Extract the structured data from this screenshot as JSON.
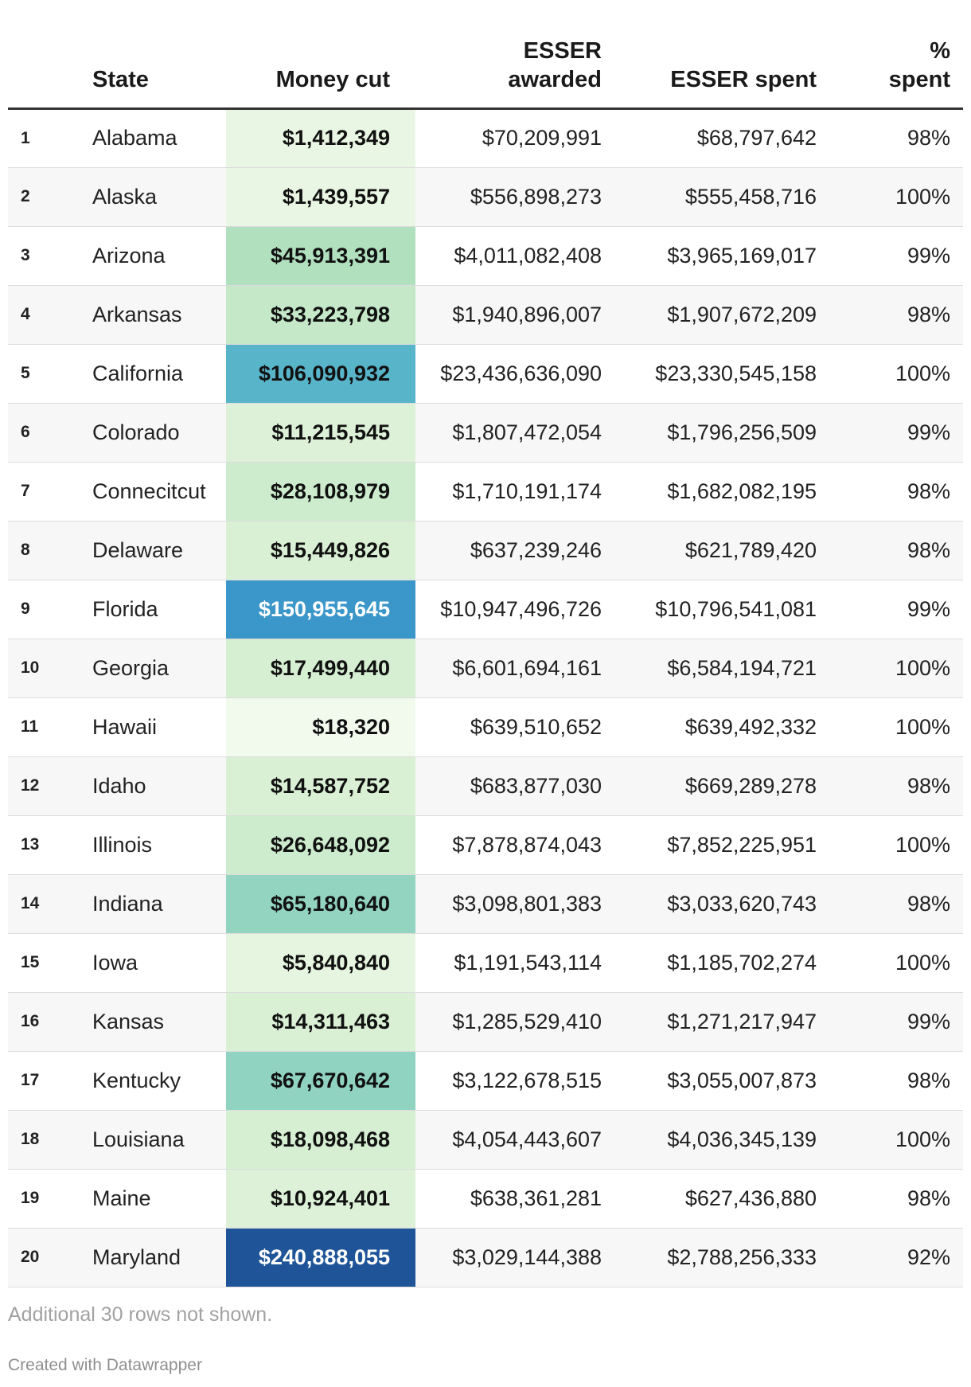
{
  "table": {
    "headers": {
      "rank": "",
      "state": "State",
      "money_cut": "Money cut",
      "esser_awarded_line1": "ESSER",
      "esser_awarded_line2": "awarded",
      "esser_spent": "ESSER spent",
      "pct_line1": "%",
      "pct_line2": "spent"
    },
    "rows": [
      {
        "rank": "1",
        "state": "Alabama",
        "money_cut": "$1,412,349",
        "esser_awarded": "$70,209,991",
        "esser_spent": "$68,797,642",
        "pct_spent": "98%",
        "cut_bg": "#eaf6e4",
        "cut_fg": "#111111"
      },
      {
        "rank": "2",
        "state": "Alaska",
        "money_cut": "$1,439,557",
        "esser_awarded": "$556,898,273",
        "esser_spent": "$555,458,716",
        "pct_spent": "100%",
        "cut_bg": "#eaf6e4",
        "cut_fg": "#111111"
      },
      {
        "rank": "3",
        "state": "Arizona",
        "money_cut": "$45,913,391",
        "esser_awarded": "$4,011,082,408",
        "esser_spent": "$3,965,169,017",
        "pct_spent": "99%",
        "cut_bg": "#b1e0bf",
        "cut_fg": "#111111"
      },
      {
        "rank": "4",
        "state": "Arkansas",
        "money_cut": "$33,223,798",
        "esser_awarded": "$1,940,896,007",
        "esser_spent": "$1,907,672,209",
        "pct_spent": "98%",
        "cut_bg": "#c4e8c8",
        "cut_fg": "#111111"
      },
      {
        "rank": "5",
        "state": "California",
        "money_cut": "$106,090,932",
        "esser_awarded": "$23,436,636,090",
        "esser_spent": "$23,330,545,158",
        "pct_spent": "100%",
        "cut_bg": "#58b4c9",
        "cut_fg": "#111111"
      },
      {
        "rank": "6",
        "state": "Colorado",
        "money_cut": "$11,215,545",
        "esser_awarded": "$1,807,472,054",
        "esser_spent": "$1,796,256,509",
        "pct_spent": "99%",
        "cut_bg": "#ddf1d8",
        "cut_fg": "#111111"
      },
      {
        "rank": "7",
        "state": "Connecitcut",
        "money_cut": "$28,108,979",
        "esser_awarded": "$1,710,191,174",
        "esser_spent": "$1,682,082,195",
        "pct_spent": "98%",
        "cut_bg": "#cdecce",
        "cut_fg": "#111111"
      },
      {
        "rank": "8",
        "state": "Delaware",
        "money_cut": "$15,449,826",
        "esser_awarded": "$637,239,246",
        "esser_spent": "$621,789,420",
        "pct_spent": "98%",
        "cut_bg": "#daf0d5",
        "cut_fg": "#111111"
      },
      {
        "rank": "9",
        "state": "Florida",
        "money_cut": "$150,955,645",
        "esser_awarded": "$10,947,496,726",
        "esser_spent": "$10,796,541,081",
        "pct_spent": "99%",
        "cut_bg": "#3b97c9",
        "cut_fg": "#ffffff"
      },
      {
        "rank": "10",
        "state": "Georgia",
        "money_cut": "$17,499,440",
        "esser_awarded": "$6,601,694,161",
        "esser_spent": "$6,584,194,721",
        "pct_spent": "100%",
        "cut_bg": "#d6efd3",
        "cut_fg": "#111111"
      },
      {
        "rank": "11",
        "state": "Hawaii",
        "money_cut": "$18,320",
        "esser_awarded": "$639,510,652",
        "esser_spent": "$639,492,332",
        "pct_spent": "100%",
        "cut_bg": "#f2faee",
        "cut_fg": "#111111"
      },
      {
        "rank": "12",
        "state": "Idaho",
        "money_cut": "$14,587,752",
        "esser_awarded": "$683,877,030",
        "esser_spent": "$669,289,278",
        "pct_spent": "98%",
        "cut_bg": "#daf0d5",
        "cut_fg": "#111111"
      },
      {
        "rank": "13",
        "state": "Illinois",
        "money_cut": "$26,648,092",
        "esser_awarded": "$7,878,874,043",
        "esser_spent": "$7,852,225,951",
        "pct_spent": "100%",
        "cut_bg": "#cdecce",
        "cut_fg": "#111111"
      },
      {
        "rank": "14",
        "state": "Indiana",
        "money_cut": "$65,180,640",
        "esser_awarded": "$3,098,801,383",
        "esser_spent": "$3,033,620,743",
        "pct_spent": "98%",
        "cut_bg": "#92d4c0",
        "cut_fg": "#111111"
      },
      {
        "rank": "15",
        "state": "Iowa",
        "money_cut": "$5,840,840",
        "esser_awarded": "$1,191,543,114",
        "esser_spent": "$1,185,702,274",
        "pct_spent": "100%",
        "cut_bg": "#e6f5e0",
        "cut_fg": "#111111"
      },
      {
        "rank": "16",
        "state": "Kansas",
        "money_cut": "$14,311,463",
        "esser_awarded": "$1,285,529,410",
        "esser_spent": "$1,271,217,947",
        "pct_spent": "99%",
        "cut_bg": "#daf0d5",
        "cut_fg": "#111111"
      },
      {
        "rank": "17",
        "state": "Kentucky",
        "money_cut": "$67,670,642",
        "esser_awarded": "$3,122,678,515",
        "esser_spent": "$3,055,007,873",
        "pct_spent": "98%",
        "cut_bg": "#90d3c1",
        "cut_fg": "#111111"
      },
      {
        "rank": "18",
        "state": "Louisiana",
        "money_cut": "$18,098,468",
        "esser_awarded": "$4,054,443,607",
        "esser_spent": "$4,036,345,139",
        "pct_spent": "100%",
        "cut_bg": "#d6efd3",
        "cut_fg": "#111111"
      },
      {
        "rank": "19",
        "state": "Maine",
        "money_cut": "$10,924,401",
        "esser_awarded": "$638,361,281",
        "esser_spent": "$627,436,880",
        "pct_spent": "98%",
        "cut_bg": "#ddf1d8",
        "cut_fg": "#111111"
      },
      {
        "rank": "20",
        "state": "Maryland",
        "money_cut": "$240,888,055",
        "esser_awarded": "$3,029,144,388",
        "esser_spent": "$2,788,256,333",
        "pct_spent": "92%",
        "cut_bg": "#1f5598",
        "cut_fg": "#ffffff"
      }
    ]
  },
  "footer": {
    "note": "Additional 30 rows not shown.",
    "credit": "Created with Datawrapper"
  },
  "chart_data": {
    "type": "table",
    "columns": [
      "",
      "State",
      "Money cut",
      "ESSER awarded",
      "ESSER spent",
      "% spent"
    ],
    "rank": [
      1,
      2,
      3,
      4,
      5,
      6,
      7,
      8,
      9,
      10,
      11,
      12,
      13,
      14,
      15,
      16,
      17,
      18,
      19,
      20
    ],
    "state": [
      "Alabama",
      "Alaska",
      "Arizona",
      "Arkansas",
      "California",
      "Colorado",
      "Connecitcut",
      "Delaware",
      "Florida",
      "Georgia",
      "Hawaii",
      "Idaho",
      "Illinois",
      "Indiana",
      "Iowa",
      "Kansas",
      "Kentucky",
      "Louisiana",
      "Maine",
      "Maryland"
    ],
    "money_cut": [
      1412349,
      1439557,
      45913391,
      33223798,
      106090932,
      11215545,
      28108979,
      15449826,
      150955645,
      17499440,
      18320,
      14587752,
      26648092,
      65180640,
      5840840,
      14311463,
      67670642,
      18098468,
      10924401,
      240888055
    ],
    "esser_awarded": [
      70209991,
      556898273,
      4011082408,
      1940896007,
      23436636090,
      1807472054,
      1710191174,
      637239246,
      10947496726,
      6601694161,
      639510652,
      683877030,
      7878874043,
      3098801383,
      1191543114,
      1285529410,
      3122678515,
      4054443607,
      638361281,
      3029144388
    ],
    "esser_spent": [
      68797642,
      555458716,
      3965169017,
      1907672209,
      23330545158,
      1796256509,
      1682082195,
      621789420,
      10796541081,
      6584194721,
      639492332,
      669289278,
      7852225951,
      3033620743,
      1185702274,
      1271217947,
      3055007873,
      4036345139,
      627436880,
      2788256333
    ],
    "pct_spent": [
      98,
      100,
      99,
      98,
      100,
      99,
      98,
      98,
      99,
      100,
      100,
      98,
      100,
      98,
      100,
      99,
      98,
      100,
      98,
      92
    ],
    "heatmap_column": "Money cut"
  }
}
